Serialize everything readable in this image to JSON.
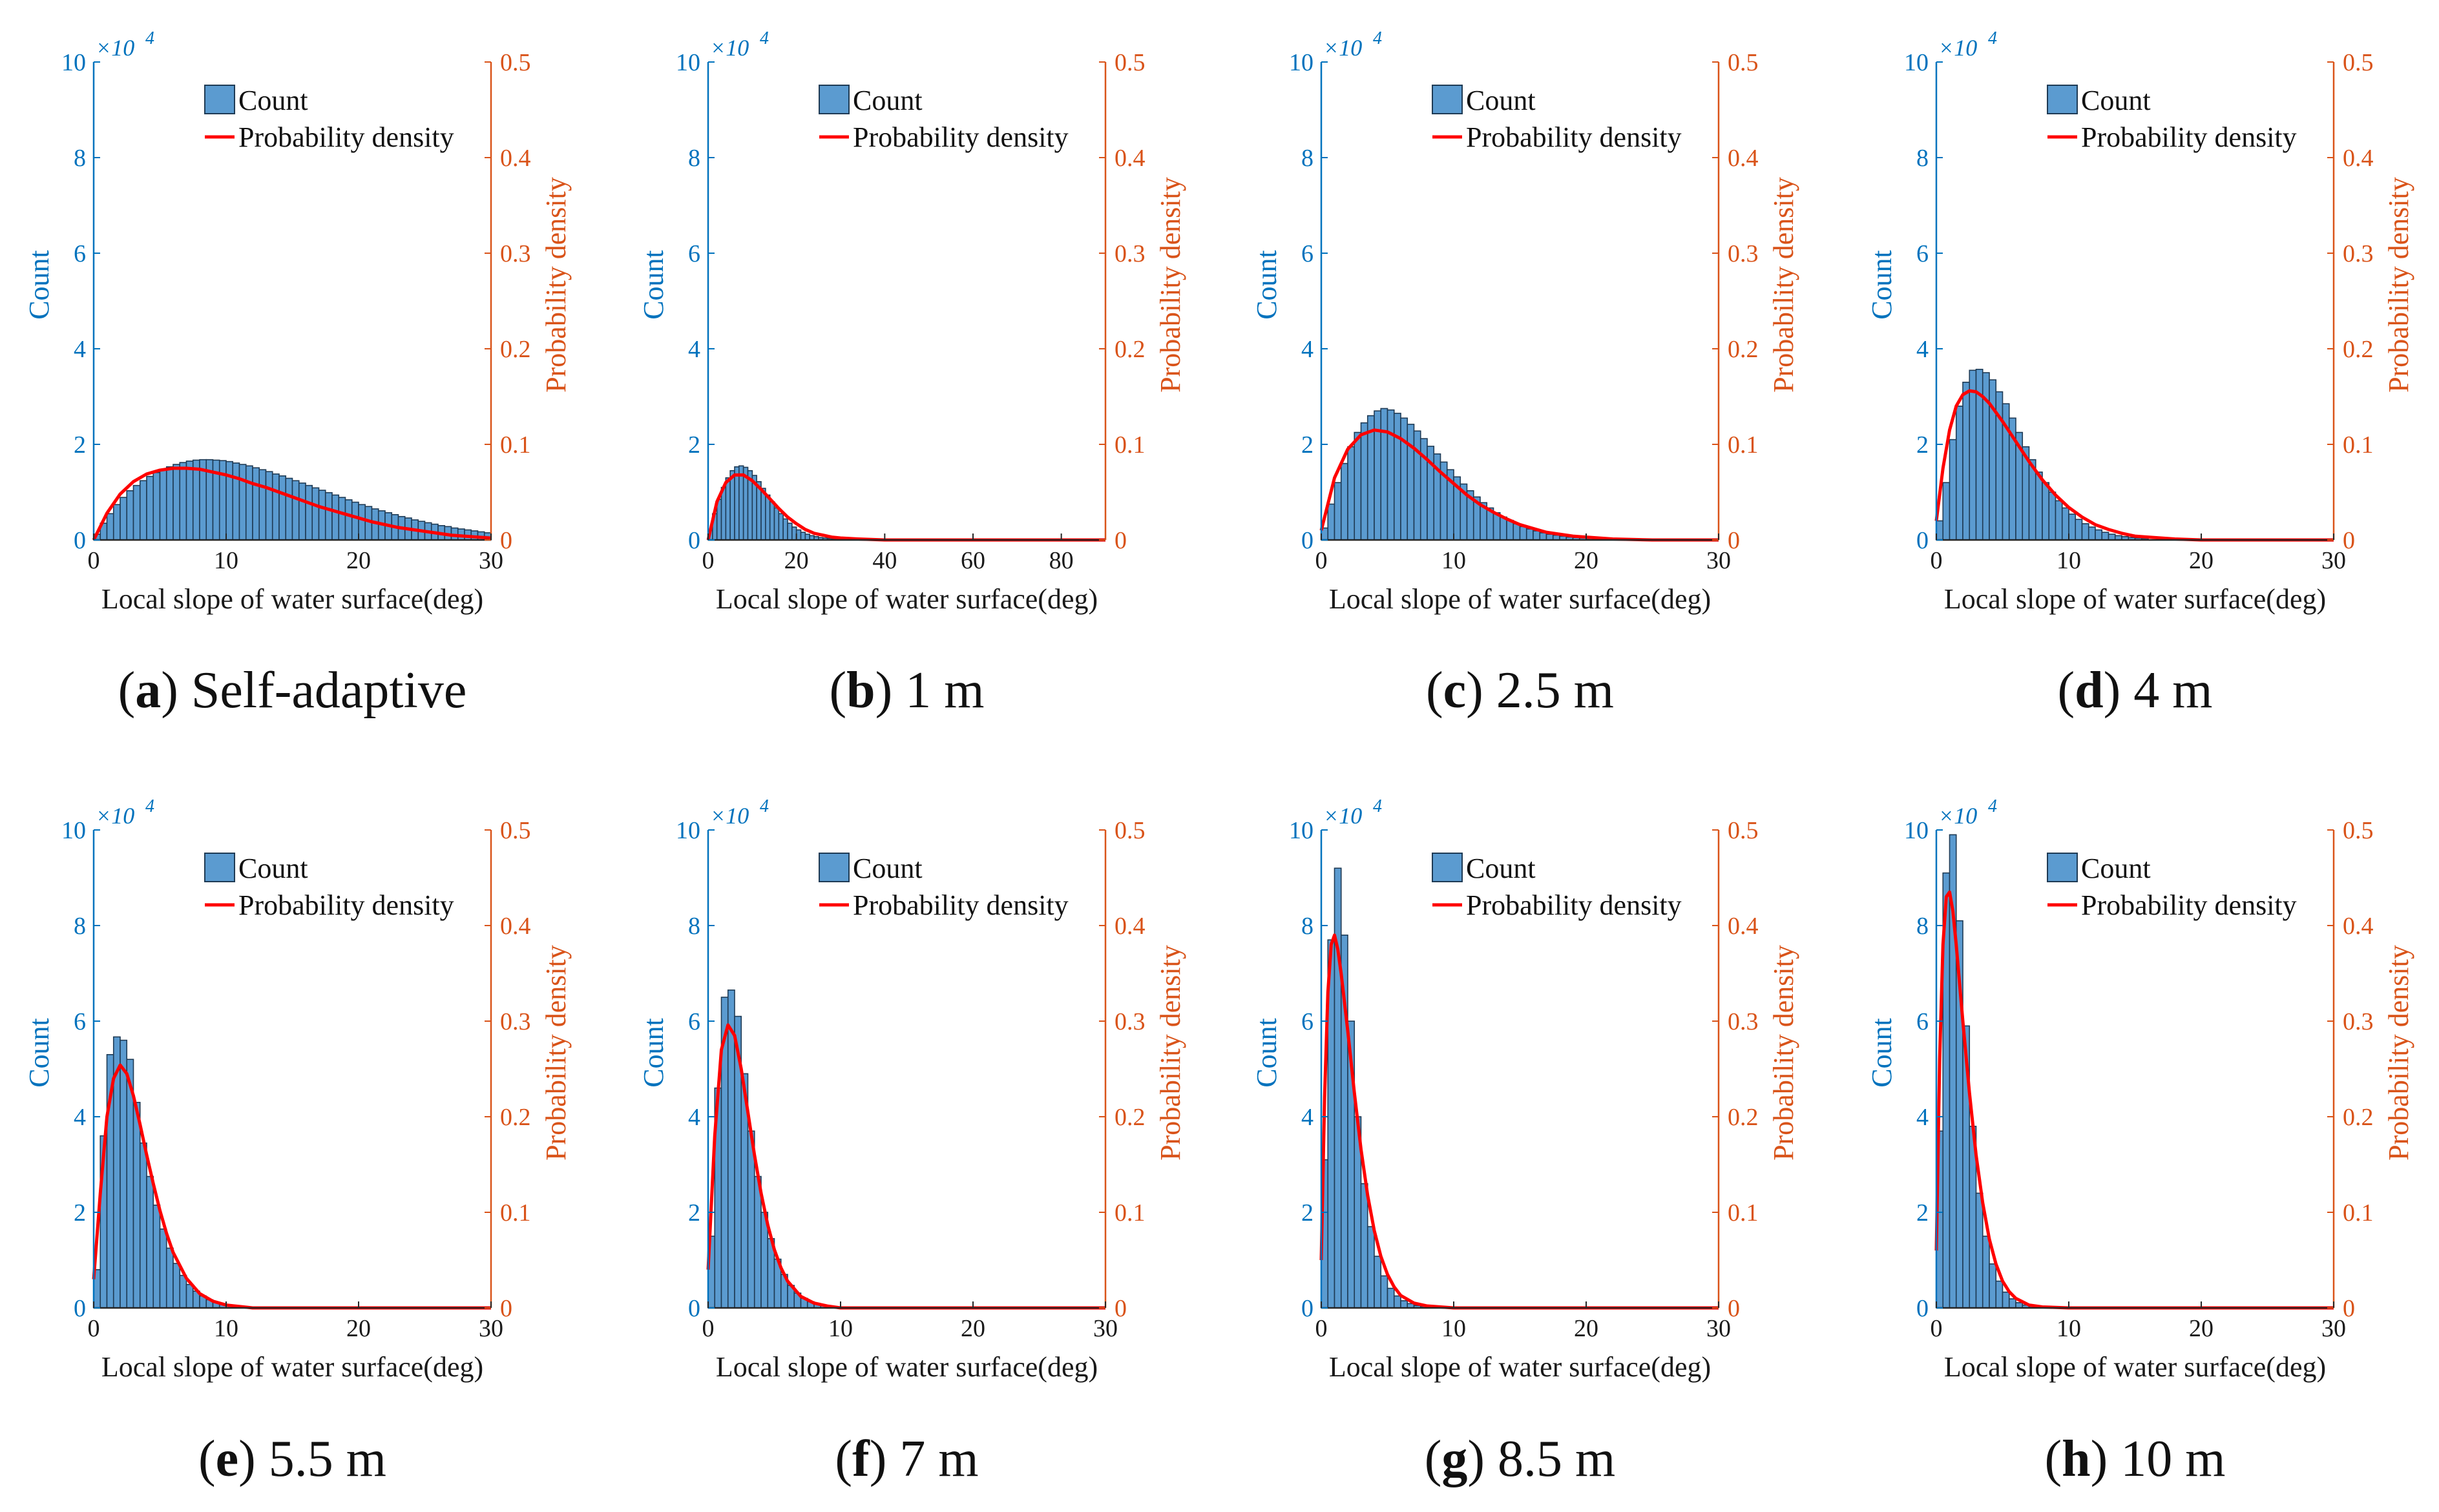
{
  "figure": {
    "axis_font": "serif"
  },
  "colors": {
    "bar_fill": "#5b9bd0",
    "bar_edge": "#1f3b55",
    "pdf_line": "#ff0000",
    "left_axis": "#0072BD",
    "right_axis": "#D95319",
    "axes": "#262626"
  },
  "chart_data": [
    {
      "id": "a",
      "letter": "a",
      "caption": "Self-adaptive",
      "type": "bar",
      "xlabel": "Local slope of water surface(deg)",
      "ylabel": "Count",
      "y2label": "Probability density",
      "xlim": [
        0,
        30
      ],
      "xticks": [
        0,
        10,
        20,
        30
      ],
      "ylim": [
        0,
        10
      ],
      "yticks": [
        0,
        2,
        4,
        6,
        8,
        10
      ],
      "y2lim": [
        0,
        0.5
      ],
      "y2ticks": [
        0,
        0.1,
        0.2,
        0.3,
        0.4,
        0.5
      ],
      "y_multiplier": "×10",
      "y_exponent": "4",
      "legend": [
        "Count",
        "Probability density"
      ],
      "bin_width": 0.5,
      "counts": [
        0.12,
        0.35,
        0.55,
        0.74,
        0.89,
        1.03,
        1.14,
        1.24,
        1.33,
        1.41,
        1.47,
        1.53,
        1.58,
        1.62,
        1.65,
        1.67,
        1.68,
        1.68,
        1.67,
        1.66,
        1.64,
        1.61,
        1.58,
        1.55,
        1.51,
        1.47,
        1.43,
        1.38,
        1.34,
        1.29,
        1.24,
        1.19,
        1.14,
        1.09,
        1.04,
        0.99,
        0.94,
        0.89,
        0.84,
        0.79,
        0.74,
        0.7,
        0.65,
        0.61,
        0.57,
        0.53,
        0.49,
        0.46,
        0.42,
        0.39,
        0.36,
        0.33,
        0.3,
        0.28,
        0.25,
        0.23,
        0.21,
        0.19,
        0.17,
        0.15
      ],
      "pdf_x": [
        0,
        1,
        2,
        3,
        4,
        5,
        6,
        7,
        8,
        9,
        10,
        11,
        12,
        13,
        14,
        15,
        16,
        17,
        18,
        19,
        20,
        21,
        22,
        23,
        24,
        25,
        26,
        27,
        28,
        29,
        30
      ],
      "pdf": [
        0,
        0.028,
        0.048,
        0.061,
        0.069,
        0.073,
        0.075,
        0.075,
        0.074,
        0.071,
        0.068,
        0.064,
        0.059,
        0.055,
        0.05,
        0.045,
        0.04,
        0.035,
        0.031,
        0.027,
        0.023,
        0.019,
        0.016,
        0.013,
        0.011,
        0.009,
        0.007,
        0.005,
        0.004,
        0.003,
        0.002
      ]
    },
    {
      "id": "b",
      "letter": "b",
      "caption": "1 m",
      "type": "bar",
      "xlabel": "Local slope of water surface(deg)",
      "ylabel": "Count",
      "y2label": "Probability density",
      "xlim": [
        0,
        90
      ],
      "xticks": [
        0,
        20,
        40,
        60,
        80
      ],
      "ylim": [
        0,
        10
      ],
      "yticks": [
        0,
        2,
        4,
        6,
        8,
        10
      ],
      "y2lim": [
        0,
        0.5
      ],
      "y2ticks": [
        0,
        0.1,
        0.2,
        0.3,
        0.4,
        0.5
      ],
      "y_multiplier": "×10",
      "y_exponent": "4",
      "legend": [
        "Count",
        "Probability density"
      ],
      "bin_width": 1,
      "counts": [
        0.2,
        0.55,
        0.85,
        1.1,
        1.3,
        1.45,
        1.53,
        1.55,
        1.52,
        1.45,
        1.35,
        1.22,
        1.08,
        0.94,
        0.8,
        0.67,
        0.55,
        0.44,
        0.35,
        0.27,
        0.21,
        0.16,
        0.12,
        0.09,
        0.07,
        0.05,
        0.04,
        0.03,
        0.02,
        0.02,
        0.01,
        0.01
      ],
      "pdf_x": [
        0,
        2,
        4,
        6,
        8,
        10,
        12,
        14,
        16,
        18,
        20,
        22,
        24,
        26,
        28,
        30,
        34,
        40,
        50,
        60,
        70,
        80,
        90
      ],
      "pdf": [
        0,
        0.04,
        0.06,
        0.068,
        0.068,
        0.062,
        0.053,
        0.043,
        0.033,
        0.024,
        0.017,
        0.011,
        0.007,
        0.005,
        0.003,
        0.002,
        0.001,
        0,
        0,
        0,
        0,
        0,
        0
      ]
    },
    {
      "id": "c",
      "letter": "c",
      "caption": "2.5 m",
      "type": "bar",
      "xlabel": "Local slope of water surface(deg)",
      "ylabel": "Count",
      "y2label": "Probability density",
      "xlim": [
        0,
        30
      ],
      "xticks": [
        0,
        10,
        20,
        30
      ],
      "ylim": [
        0,
        10
      ],
      "yticks": [
        0,
        2,
        4,
        6,
        8,
        10
      ],
      "y2lim": [
        0,
        0.5
      ],
      "y2ticks": [
        0,
        0.1,
        0.2,
        0.3,
        0.4,
        0.5
      ],
      "y_multiplier": "×10",
      "y_exponent": "4",
      "legend": [
        "Count",
        "Probability density"
      ],
      "bin_width": 0.5,
      "counts": [
        0.25,
        0.75,
        1.2,
        1.6,
        1.95,
        2.25,
        2.45,
        2.6,
        2.7,
        2.75,
        2.72,
        2.65,
        2.55,
        2.42,
        2.28,
        2.12,
        1.96,
        1.8,
        1.63,
        1.47,
        1.32,
        1.17,
        1.03,
        0.9,
        0.78,
        0.67,
        0.57,
        0.48,
        0.41,
        0.34,
        0.28,
        0.23,
        0.19,
        0.15,
        0.12,
        0.1,
        0.08,
        0.06,
        0.05,
        0.04,
        0.03,
        0.02
      ],
      "pdf_x": [
        0,
        1,
        2,
        3,
        4,
        5,
        6,
        7,
        8,
        9,
        10,
        11,
        12,
        13,
        14,
        15,
        16,
        17,
        18,
        19,
        20,
        22,
        25,
        30
      ],
      "pdf": [
        0.01,
        0.065,
        0.095,
        0.11,
        0.115,
        0.113,
        0.106,
        0.096,
        0.084,
        0.071,
        0.059,
        0.047,
        0.037,
        0.029,
        0.022,
        0.016,
        0.012,
        0.008,
        0.006,
        0.004,
        0.003,
        0.001,
        0,
        0
      ]
    },
    {
      "id": "d",
      "letter": "d",
      "caption": "4 m",
      "type": "bar",
      "xlabel": "Local slope of water surface(deg)",
      "ylabel": "Count",
      "y2label": "Probability density",
      "xlim": [
        0,
        30
      ],
      "xticks": [
        0,
        10,
        20,
        30
      ],
      "ylim": [
        0,
        10
      ],
      "yticks": [
        0,
        2,
        4,
        6,
        8,
        10
      ],
      "y2lim": [
        0,
        0.5
      ],
      "y2ticks": [
        0,
        0.1,
        0.2,
        0.3,
        0.4,
        0.5
      ],
      "y_multiplier": "×10",
      "y_exponent": "4",
      "legend": [
        "Count",
        "Probability density"
      ],
      "bin_width": 0.5,
      "counts": [
        0.4,
        1.2,
        2.1,
        2.8,
        3.3,
        3.55,
        3.57,
        3.5,
        3.35,
        3.1,
        2.85,
        2.55,
        2.25,
        1.95,
        1.68,
        1.42,
        1.2,
        1.0,
        0.82,
        0.67,
        0.54,
        0.43,
        0.34,
        0.27,
        0.21,
        0.16,
        0.12,
        0.09,
        0.07,
        0.05,
        0.04,
        0.03
      ],
      "pdf_x": [
        0,
        0.5,
        1,
        1.5,
        2,
        2.5,
        3,
        3.5,
        4,
        5,
        6,
        7,
        8,
        9,
        10,
        11,
        12,
        13,
        14,
        15,
        16,
        18,
        20,
        25,
        30
      ],
      "pdf": [
        0.02,
        0.075,
        0.115,
        0.14,
        0.152,
        0.156,
        0.155,
        0.15,
        0.143,
        0.124,
        0.103,
        0.082,
        0.063,
        0.047,
        0.034,
        0.024,
        0.016,
        0.011,
        0.007,
        0.004,
        0.003,
        0.001,
        0,
        0,
        0
      ]
    },
    {
      "id": "e",
      "letter": "e",
      "caption": "5.5 m",
      "type": "bar",
      "xlabel": "Local slope of water surface(deg)",
      "ylabel": "Count",
      "y2label": "Probability density",
      "xlim": [
        0,
        30
      ],
      "xticks": [
        0,
        10,
        20,
        30
      ],
      "ylim": [
        0,
        10
      ],
      "yticks": [
        0,
        2,
        4,
        6,
        8,
        10
      ],
      "y2lim": [
        0,
        0.5
      ],
      "y2ticks": [
        0,
        0.1,
        0.2,
        0.3,
        0.4,
        0.5
      ],
      "y_multiplier": "×10",
      "y_exponent": "4",
      "legend": [
        "Count",
        "Probability density"
      ],
      "bin_width": 0.5,
      "counts": [
        0.8,
        3.6,
        5.3,
        5.67,
        5.6,
        5.2,
        4.3,
        3.45,
        2.75,
        2.15,
        1.65,
        1.25,
        0.93,
        0.68,
        0.49,
        0.35,
        0.25,
        0.17,
        0.12,
        0.08,
        0.05,
        0.03,
        0.02
      ],
      "pdf_x": [
        0,
        0.5,
        1,
        1.5,
        2,
        2.5,
        3,
        3.5,
        4,
        4.5,
        5,
        5.5,
        6,
        7,
        8,
        9,
        10,
        12,
        15,
        20,
        25,
        30
      ],
      "pdf": [
        0.03,
        0.12,
        0.2,
        0.24,
        0.254,
        0.245,
        0.222,
        0.192,
        0.16,
        0.13,
        0.102,
        0.078,
        0.058,
        0.031,
        0.015,
        0.007,
        0.003,
        0,
        0,
        0,
        0,
        0
      ]
    },
    {
      "id": "f",
      "letter": "f",
      "caption": "7 m",
      "type": "bar",
      "xlabel": "Local slope of water surface(deg)",
      "ylabel": "Count",
      "y2label": "Probability density",
      "xlim": [
        0,
        30
      ],
      "xticks": [
        0,
        10,
        20,
        30
      ],
      "ylim": [
        0,
        10
      ],
      "yticks": [
        0,
        2,
        4,
        6,
        8,
        10
      ],
      "y2lim": [
        0,
        0.5
      ],
      "y2ticks": [
        0,
        0.1,
        0.2,
        0.3,
        0.4,
        0.5
      ],
      "y_multiplier": "×10",
      "y_exponent": "4",
      "legend": [
        "Count",
        "Probability density"
      ],
      "bin_width": 0.5,
      "counts": [
        1.5,
        4.6,
        6.5,
        6.65,
        6.1,
        4.9,
        3.7,
        2.75,
        2.0,
        1.45,
        1.02,
        0.7,
        0.47,
        0.31,
        0.2,
        0.13,
        0.08,
        0.05,
        0.03
      ],
      "pdf_x": [
        0,
        0.5,
        1,
        1.5,
        2,
        2.5,
        3,
        3.5,
        4,
        4.5,
        5,
        5.5,
        6,
        7,
        8,
        9,
        10,
        12,
        15,
        20,
        25,
        30
      ],
      "pdf": [
        0.04,
        0.18,
        0.27,
        0.296,
        0.285,
        0.25,
        0.205,
        0.16,
        0.12,
        0.087,
        0.061,
        0.042,
        0.028,
        0.012,
        0.005,
        0.002,
        0,
        0,
        0,
        0,
        0,
        0
      ]
    },
    {
      "id": "g",
      "letter": "g",
      "caption": "8.5 m",
      "type": "bar",
      "xlabel": "Local slope of water surface(deg)",
      "ylabel": "Count",
      "y2label": "Probability density",
      "xlim": [
        0,
        30
      ],
      "xticks": [
        0,
        10,
        20,
        30
      ],
      "ylim": [
        0,
        10
      ],
      "yticks": [
        0,
        2,
        4,
        6,
        8,
        10
      ],
      "y2lim": [
        0,
        0.5
      ],
      "y2ticks": [
        0,
        0.1,
        0.2,
        0.3,
        0.4,
        0.5
      ],
      "y_multiplier": "×10",
      "y_exponent": "4",
      "legend": [
        "Count",
        "Probability density"
      ],
      "bin_width": 0.5,
      "counts": [
        3.1,
        7.7,
        9.2,
        7.8,
        6.0,
        4.0,
        2.6,
        1.7,
        1.08,
        0.67,
        0.41,
        0.25,
        0.15,
        0.09,
        0.05,
        0.03
      ],
      "pdf_x": [
        0,
        0.25,
        0.5,
        0.75,
        1,
        1.25,
        1.5,
        2,
        2.5,
        3,
        3.5,
        4,
        4.5,
        5,
        5.5,
        6,
        7,
        8,
        10,
        15,
        20,
        25,
        30
      ],
      "pdf": [
        0.05,
        0.22,
        0.33,
        0.38,
        0.39,
        0.375,
        0.35,
        0.29,
        0.225,
        0.166,
        0.118,
        0.081,
        0.054,
        0.035,
        0.022,
        0.013,
        0.005,
        0.002,
        0,
        0,
        0,
        0,
        0
      ]
    },
    {
      "id": "h",
      "letter": "h",
      "caption": "10 m",
      "type": "bar",
      "xlabel": "Local slope of water surface(deg)",
      "ylabel": "Count",
      "y2label": "Probability density",
      "xlim": [
        0,
        30
      ],
      "xticks": [
        0,
        10,
        20,
        30
      ],
      "ylim": [
        0,
        10
      ],
      "yticks": [
        0,
        2,
        4,
        6,
        8,
        10
      ],
      "y2lim": [
        0,
        0.5
      ],
      "y2ticks": [
        0,
        0.1,
        0.2,
        0.3,
        0.4,
        0.5
      ],
      "y_multiplier": "×10",
      "y_exponent": "4",
      "legend": [
        "Count",
        "Probability density"
      ],
      "bin_width": 0.5,
      "counts": [
        3.7,
        9.1,
        9.9,
        8.1,
        5.9,
        3.8,
        2.4,
        1.5,
        0.92,
        0.56,
        0.33,
        0.19,
        0.11,
        0.06,
        0.03
      ],
      "pdf_x": [
        0,
        0.25,
        0.5,
        0.75,
        1,
        1.25,
        1.5,
        2,
        2.5,
        3,
        3.5,
        4,
        4.5,
        5,
        5.5,
        6,
        7,
        8,
        10,
        15,
        20,
        25,
        30
      ],
      "pdf": [
        0.06,
        0.26,
        0.38,
        0.43,
        0.435,
        0.415,
        0.38,
        0.3,
        0.225,
        0.16,
        0.11,
        0.072,
        0.046,
        0.028,
        0.017,
        0.01,
        0.003,
        0.001,
        0,
        0,
        0,
        0,
        0
      ]
    }
  ]
}
